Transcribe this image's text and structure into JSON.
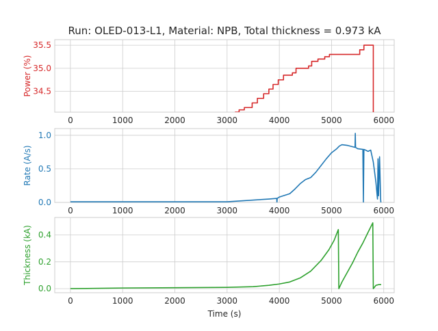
{
  "figure": {
    "title": "Run: OLED-013-L1, Material: NPB, Total thickness = 0.973 kA",
    "xlabel": "Time (s)"
  },
  "colors": {
    "power": "#d62728",
    "rate": "#1f77b4",
    "thickness": "#2ca02c",
    "grid": "#cccccc",
    "axes_edge": "#cccccc"
  },
  "chart_data": [
    {
      "type": "line",
      "name": "power",
      "ylabel": "Power (%)",
      "xlim": [
        -300,
        6200
      ],
      "ylim": [
        34.05,
        35.62
      ],
      "xticks": [
        0,
        1000,
        2000,
        3000,
        4000,
        5000,
        6000
      ],
      "yticks": [
        34.5,
        35.0,
        35.5
      ],
      "yticklabels": [
        "34.5",
        "35.0",
        "35.5"
      ],
      "grid": true,
      "step": true,
      "x": [
        3150,
        3230,
        3330,
        3480,
        3580,
        3700,
        3800,
        3880,
        3980,
        4080,
        4250,
        4320,
        4560,
        4620,
        4740,
        4870,
        4960,
        5540,
        5620,
        5780,
        5800
      ],
      "y": [
        34.05,
        34.1,
        34.15,
        34.25,
        34.35,
        34.45,
        34.55,
        34.65,
        34.75,
        34.85,
        34.9,
        35.0,
        35.05,
        35.15,
        35.2,
        35.25,
        35.3,
        35.4,
        35.5,
        35.5,
        34.05
      ]
    },
    {
      "type": "line",
      "name": "rate",
      "ylabel": "Rate (A/s)",
      "xlim": [
        -300,
        6200
      ],
      "ylim": [
        0,
        1.1
      ],
      "xticks": [
        0,
        1000,
        2000,
        3000,
        4000,
        5000,
        6000
      ],
      "yticks": [
        0.0,
        0.5,
        1.0
      ],
      "yticklabels": [
        "0.0",
        "0.5",
        "1.0"
      ],
      "grid": true,
      "x": [
        0,
        3000,
        3200,
        3400,
        3600,
        3800,
        3950,
        3955,
        3960,
        4000,
        4200,
        4300,
        4400,
        4500,
        4600,
        4700,
        4800,
        4900,
        5000,
        5100,
        5150,
        5200,
        5300,
        5400,
        5450,
        5455,
        5460,
        5500,
        5600,
        5610,
        5620,
        5650,
        5700,
        5750,
        5800,
        5850,
        5880,
        5890,
        5900,
        5920,
        5940,
        5945,
        5950
      ],
      "y": [
        0.01,
        0.01,
        0.02,
        0.03,
        0.04,
        0.05,
        0.06,
        0.0,
        0.06,
        0.08,
        0.13,
        0.2,
        0.28,
        0.34,
        0.37,
        0.45,
        0.55,
        0.65,
        0.74,
        0.8,
        0.84,
        0.86,
        0.85,
        0.83,
        0.82,
        1.03,
        0.82,
        0.8,
        0.79,
        0.0,
        0.79,
        0.78,
        0.76,
        0.78,
        0.6,
        0.3,
        0.05,
        0.65,
        0.1,
        0.68,
        0.05,
        0.0,
        0.0
      ]
    },
    {
      "type": "line",
      "name": "thickness",
      "ylabel": "Thickness (kA)",
      "xlim": [
        -300,
        6200
      ],
      "ylim": [
        -0.03,
        0.53
      ],
      "xticks": [
        0,
        1000,
        2000,
        3000,
        4000,
        5000,
        6000
      ],
      "xticklabels": [
        "0",
        "1000",
        "2000",
        "3000",
        "4000",
        "5000",
        "6000"
      ],
      "yticks": [
        0.0,
        0.2,
        0.4
      ],
      "yticklabels": [
        "0.0",
        "0.2",
        "0.4"
      ],
      "grid": true,
      "x": [
        0,
        1000,
        2000,
        3000,
        3500,
        3800,
        4000,
        4200,
        4400,
        4600,
        4800,
        4950,
        5050,
        5130,
        5140,
        5200,
        5300,
        5400,
        5500,
        5600,
        5700,
        5790,
        5800,
        5850,
        5900,
        5950
      ],
      "y": [
        0.0,
        0.005,
        0.007,
        0.01,
        0.015,
        0.025,
        0.035,
        0.05,
        0.08,
        0.13,
        0.21,
        0.29,
        0.36,
        0.44,
        0.0,
        0.05,
        0.12,
        0.19,
        0.27,
        0.34,
        0.42,
        0.49,
        0.0,
        0.025,
        0.03,
        0.03
      ]
    }
  ]
}
